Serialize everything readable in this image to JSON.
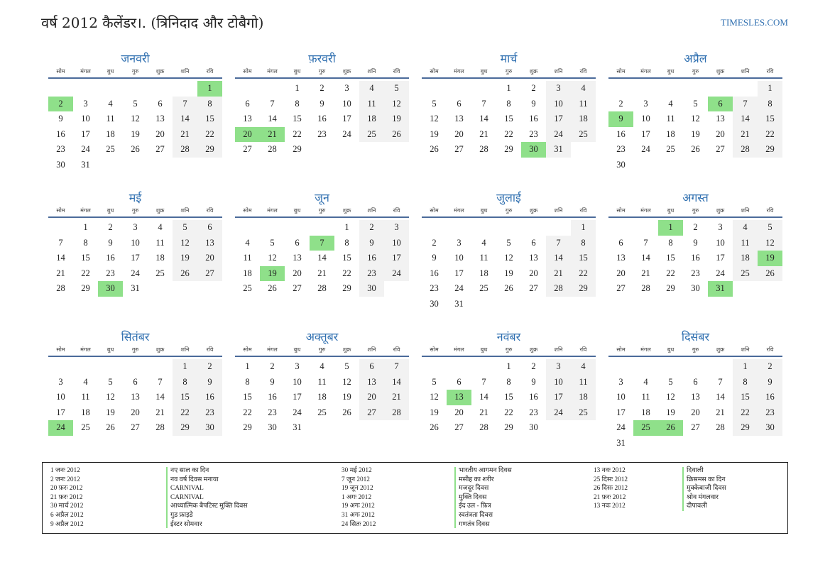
{
  "header": {
    "title": "वर्ष 2012 कैलेंडर।. (त्रिनिदाद और टोबैगो)",
    "site": "TIMESLES.COM"
  },
  "weekdays": [
    "सोम",
    "मंगल",
    "बुध",
    "गुरु",
    "शुक्र",
    "शनि",
    "रवि"
  ],
  "colors": {
    "accent": "#2f6fb0",
    "holiday": "#8fe08a",
    "weekend": "#f2f2f2",
    "rule": "#4b6b9a"
  },
  "months": [
    {
      "name": "जनवरी",
      "offset": 6,
      "days": 31,
      "holidays": [
        1,
        2
      ]
    },
    {
      "name": "फ़रवरी",
      "offset": 2,
      "days": 29,
      "holidays": [
        20,
        21
      ]
    },
    {
      "name": "मार्च",
      "offset": 3,
      "days": 31,
      "holidays": [
        30
      ]
    },
    {
      "name": "अप्रैल",
      "offset": 6,
      "days": 30,
      "holidays": [
        6,
        9
      ]
    },
    {
      "name": "मई",
      "offset": 1,
      "days": 31,
      "holidays": [
        30
      ]
    },
    {
      "name": "जून",
      "offset": 4,
      "days": 30,
      "holidays": [
        7,
        19
      ]
    },
    {
      "name": "जुलाई",
      "offset": 6,
      "days": 31,
      "holidays": []
    },
    {
      "name": "अगस्त",
      "offset": 2,
      "days": 31,
      "holidays": [
        1,
        19,
        31
      ]
    },
    {
      "name": "सितंबर",
      "offset": 5,
      "days": 30,
      "holidays": [
        24
      ]
    },
    {
      "name": "अक्तूबर",
      "offset": 0,
      "days": 31,
      "holidays": []
    },
    {
      "name": "नवंबर",
      "offset": 3,
      "days": 30,
      "holidays": [
        13
      ]
    },
    {
      "name": "दिसंबर",
      "offset": 5,
      "days": 31,
      "holidays": [
        25,
        26
      ]
    }
  ],
  "legend": {
    "col1_dates": [
      "1 जनः 2012",
      "2 जनः 2012",
      "20 फ़रः 2012",
      "21 फ़रः 2012",
      "30 मार्च 2012",
      "6 अप्रैल 2012",
      "9 अप्रैल 2012"
    ],
    "col1_names": [
      "नए साल का दिन",
      "नव वर्ष दिवस मनाया",
      "CARNIVAL",
      "CARNIVAL",
      "आध्यात्मिक बैपटिस्ट मुक्ति दिवस",
      "गुड फ्राइडे",
      "ईस्टर सोमवार"
    ],
    "col2_dates": [
      "30 मई 2012",
      "7 जून 2012",
      "19 जून 2012",
      "1 अगः 2012",
      "19 अगः 2012",
      "31 अगः 2012",
      "24 सितः 2012"
    ],
    "col2_names": [
      "भारतीय आगमन दिवस",
      "मसीह का शरीर",
      "मजदूर दिवस",
      "मुक्ति दिवस",
      "ईद उल - फ़ित्र",
      "स्वतंत्रता दिवस",
      "गणतंत्र दिवस"
    ],
    "col3_dates": [
      "13 नवः 2012",
      "25 दिसः 2012",
      "26 दिसः 2012",
      "21 फ़रः 2012",
      "13 नवः 2012"
    ],
    "col3_names": [
      "दिवाली",
      "क्रिसमस का दिन",
      "मुक्केबाजी दिवस",
      "श्रोव मंगलवार",
      "दीपावली"
    ]
  }
}
